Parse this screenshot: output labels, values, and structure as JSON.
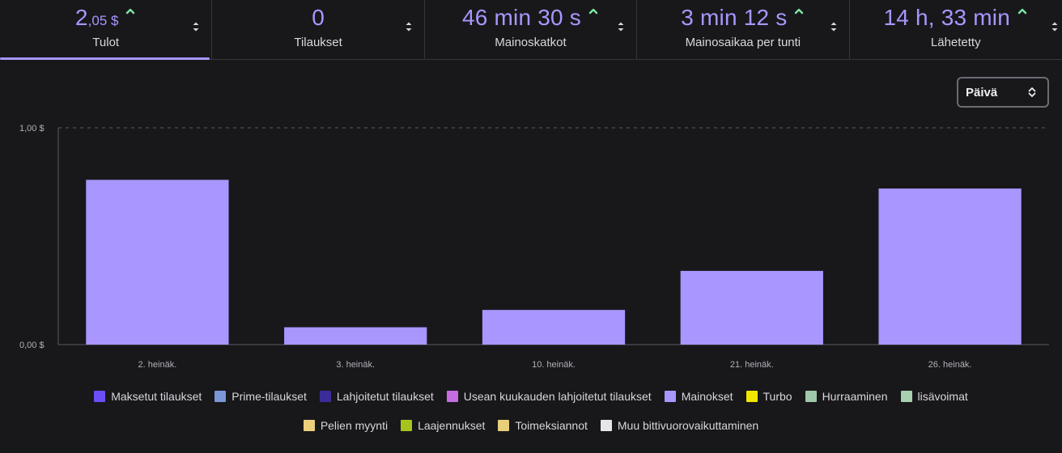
{
  "tabs": [
    {
      "value_main": "2",
      "value_small": ",05 $",
      "label": "Tulot",
      "trend": "up",
      "active": true
    },
    {
      "value_main": "0",
      "value_small": "",
      "label": "Tilaukset",
      "trend": "none",
      "active": false
    },
    {
      "value_main": "46 min 30 s",
      "value_small": "",
      "label": "Mainoskatkot",
      "trend": "up",
      "active": false
    },
    {
      "value_main": "3 min 12 s",
      "value_small": "",
      "label": "Mainosaikaa per tunti",
      "trend": "up",
      "active": false
    },
    {
      "value_main": "14 h, 33 min",
      "value_small": "",
      "label": "Lähetetty",
      "trend": "up",
      "active": false
    }
  ],
  "period_select": {
    "selected": "Päivä"
  },
  "colors": {
    "accent": "#a996ff",
    "trend_up": "#7be7a4",
    "bar": "#a996ff"
  },
  "chart_data": {
    "type": "bar",
    "categories": [
      "2. heinäk.",
      "3. heinäk.",
      "10. heinäk.",
      "21. heinäk.",
      "26. heinäk."
    ],
    "values": [
      0.76,
      0.08,
      0.16,
      0.34,
      0.72
    ],
    "y_tick_labels": [
      "0,00 $",
      "1,00 $"
    ],
    "ylim": [
      0,
      1
    ],
    "grid": "dashed line at 1,00 $",
    "legend_position": "bottom",
    "legend": [
      {
        "name": "Maksetut tilaukset",
        "color": "#6b4ef6"
      },
      {
        "name": "Prime-tilaukset",
        "color": "#7b97d8"
      },
      {
        "name": "Lahjoitetut tilaukset",
        "color": "#3b2d99"
      },
      {
        "name": "Usean kuukauden lahjoitetut tilaukset",
        "color": "#c56de0"
      },
      {
        "name": "Mainokset",
        "color": "#a996ff"
      },
      {
        "name": "Turbo",
        "color": "#f2e600"
      },
      {
        "name": "Hurraaminen",
        "color": "#9fc7a9"
      },
      {
        "name": "lisävoimat",
        "color": "#a9d0b1"
      },
      {
        "name": "Pelien myynti",
        "color": "#eccf7d"
      },
      {
        "name": "Laajennukset",
        "color": "#a6c41e"
      },
      {
        "name": "Toimeksiannot",
        "color": "#e8cf7a"
      },
      {
        "name": "Muu bittivuorovaikuttaminen",
        "color": "#e6e6e6"
      }
    ]
  }
}
